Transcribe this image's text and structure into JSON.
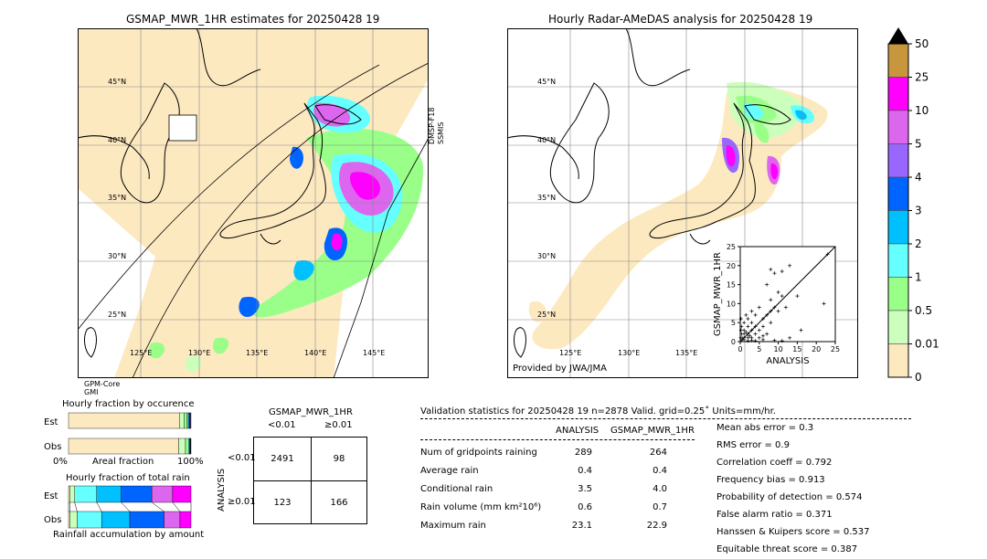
{
  "map_left": {
    "title": "GSMAP_MWR_1HR estimates for 20250428 19",
    "lat_labels": [
      "45°N",
      "40°N",
      "35°N",
      "30°N",
      "25°N"
    ],
    "lon_labels": [
      "125°E",
      "130°E",
      "135°E",
      "140°E",
      "145°E"
    ],
    "swath_label_1": "DMSP-F18",
    "swath_label_2": "SSMIS",
    "sensor_line_1": "GPM-Core",
    "sensor_line_2": "GMI"
  },
  "map_right": {
    "title": "Hourly Radar-AMeDAS analysis for 20250428 19",
    "lat_labels": [
      "45°N",
      "40°N",
      "35°N",
      "30°N",
      "25°N"
    ],
    "lon_labels": [
      "125°E",
      "130°E",
      "135°E"
    ],
    "credit": "Provided by JWA/JMA"
  },
  "colorbar": {
    "labels": [
      "50",
      "25",
      "10",
      "5",
      "4",
      "3",
      "2",
      "1",
      "0.5",
      "0.01",
      "0"
    ],
    "colors": [
      "#c8963c",
      "#ff00ff",
      "#dd66ee",
      "#9966ff",
      "#0064ff",
      "#00c0ff",
      "#66ffff",
      "#99ff88",
      "#ccffbb",
      "#fde9c0"
    ]
  },
  "fraction_panels": {
    "occurrence_title": "Hourly fraction by occurence",
    "total_rain_title": "Hourly fraction of total rain",
    "accum_title": "Rainfall accumulation by amount",
    "row_est": "Est",
    "row_obs": "Obs",
    "axis_0": "0%",
    "axis_label": "Areal fraction",
    "axis_100": "100%"
  },
  "contingency": {
    "title": "GSMAP_MWR_1HR",
    "col_lt": "<0.01",
    "col_ge": "≥0.01",
    "axis_label": "ANALYSIS",
    "row_lt": "<0.01",
    "row_ge": "≥0.01",
    "cells": [
      "2491",
      "98",
      "123",
      "166"
    ]
  },
  "validation": {
    "header": "Validation statistics for 20250428 19  n=2878 Valid. grid=0.25˚ Units=mm/hr.",
    "col_analysis": "ANALYSIS",
    "col_gsmap": "GSMAP_MWR_1HR",
    "rows": [
      {
        "label": "Num of gridpoints raining",
        "analysis": "289",
        "gsmap": "264"
      },
      {
        "label": "Average rain",
        "analysis": "0.4",
        "gsmap": "0.4"
      },
      {
        "label": "Conditional rain",
        "analysis": "3.5",
        "gsmap": "4.0"
      },
      {
        "label": "Rain volume (mm km²10⁶)",
        "analysis": "0.6",
        "gsmap": "0.7"
      },
      {
        "label": "Maximum rain",
        "analysis": "23.1",
        "gsmap": "22.9"
      }
    ],
    "scores": [
      "Mean abs error =    0.3",
      "RMS error =    0.9",
      "Correlation coeff =  0.792",
      "Frequency bias =  0.913",
      "Probability of detection =  0.574",
      "False alarm ratio =  0.371",
      "Hanssen & Kuipers score =  0.537",
      "Equitable threat score =  0.387"
    ]
  },
  "chart_data": [
    {
      "type": "scatter",
      "xlabel": "ANALYSIS",
      "ylabel": "GSMAP_MWR_1HR",
      "xlim": [
        0,
        25
      ],
      "ylim": [
        0,
        25
      ],
      "ticks": [
        "0",
        "5",
        "10",
        "15",
        "20",
        "25"
      ],
      "points": [
        [
          23,
          23
        ],
        [
          8,
          19
        ],
        [
          9,
          18
        ],
        [
          11,
          18.5
        ],
        [
          7,
          15
        ],
        [
          13,
          20
        ],
        [
          15,
          12
        ],
        [
          22,
          10
        ],
        [
          10,
          13
        ],
        [
          8,
          11
        ],
        [
          9,
          9
        ],
        [
          11,
          12
        ],
        [
          12,
          9
        ],
        [
          10,
          8
        ],
        [
          8,
          8
        ],
        [
          6,
          6
        ],
        [
          7,
          7
        ],
        [
          8,
          5
        ],
        [
          5,
          9
        ],
        [
          6,
          4
        ],
        [
          4,
          7
        ],
        [
          3,
          5
        ],
        [
          5,
          3
        ],
        [
          4,
          4
        ],
        [
          3,
          3
        ],
        [
          2,
          4
        ],
        [
          4,
          2
        ],
        [
          2,
          2
        ],
        [
          1,
          3
        ],
        [
          3,
          1
        ],
        [
          1,
          1
        ],
        [
          2,
          1
        ],
        [
          1,
          2
        ],
        [
          0.5,
          1
        ],
        [
          1,
          0.5
        ],
        [
          0.5,
          0.5
        ],
        [
          1.5,
          2.5
        ],
        [
          2.5,
          1.5
        ],
        [
          0.3,
          4
        ],
        [
          0.2,
          6
        ],
        [
          0.4,
          2
        ],
        [
          0.2,
          3
        ],
        [
          0.1,
          1
        ],
        [
          2,
          0.2
        ],
        [
          3,
          0.3
        ],
        [
          4,
          0.2
        ],
        [
          6,
          0.5
        ],
        [
          9,
          0.3
        ],
        [
          11,
          0.2
        ],
        [
          13,
          1
        ],
        [
          16,
          3
        ],
        [
          1,
          5
        ],
        [
          2,
          6
        ],
        [
          1.5,
          7
        ],
        [
          3,
          8
        ],
        [
          5,
          1
        ],
        [
          7,
          2
        ],
        [
          6,
          1.5
        ]
      ]
    },
    {
      "type": "bar",
      "title": "Hourly fraction by occurence",
      "categories": [
        "Est",
        "Obs"
      ],
      "series": [
        {
          "segments": [
            0.908,
            0.035,
            0.025,
            0.01,
            0.008,
            0.006,
            0.004,
            0.004
          ]
        },
        {
          "segments": [
            0.9,
            0.055,
            0.025,
            0.008,
            0.005,
            0.003,
            0.002,
            0.002
          ]
        }
      ]
    },
    {
      "type": "bar",
      "title": "Hourly fraction of total rain",
      "categories": [
        "Est",
        "Obs"
      ],
      "series": [
        {
          "segments": [
            0.01,
            0.04,
            0.18,
            0.2,
            0.25,
            0.17,
            0.15
          ]
        },
        {
          "segments": [
            0.01,
            0.06,
            0.2,
            0.23,
            0.28,
            0.13,
            0.09
          ]
        }
      ]
    }
  ]
}
